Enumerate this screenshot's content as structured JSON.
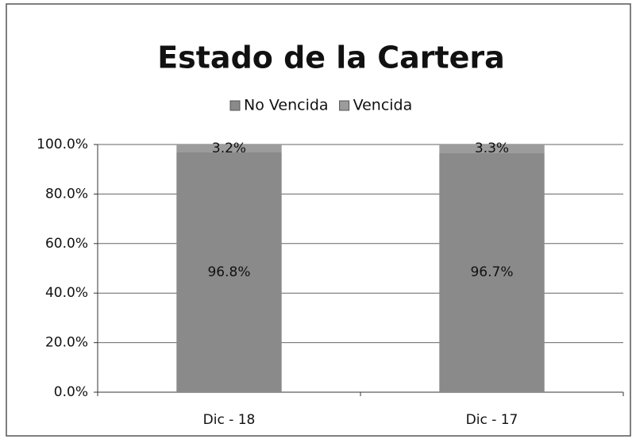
{
  "chart_data": {
    "type": "stacked_bar",
    "title": "Estado de la Cartera",
    "categories": [
      "Dic - 18",
      "Dic - 17"
    ],
    "series": [
      {
        "name": "No Vencida",
        "color": "#8a8a8a",
        "values": [
          96.8,
          96.7
        ],
        "value_labels": [
          "96.8%",
          "96.7%"
        ]
      },
      {
        "name": "Vencida",
        "color": "#9c9c9c",
        "values": [
          3.2,
          3.3
        ],
        "value_labels": [
          "3.2%",
          "3.3%"
        ]
      }
    ],
    "ylim": [
      0,
      100
    ],
    "yticks": [
      {
        "value": 0,
        "label": "0.0%"
      },
      {
        "value": 20,
        "label": "20.0%"
      },
      {
        "value": 40,
        "label": "40.0%"
      },
      {
        "value": 60,
        "label": "60.0%"
      },
      {
        "value": 80,
        "label": "80.0%"
      },
      {
        "value": 100,
        "label": "100.0%"
      }
    ],
    "grid": true,
    "legend": "top"
  }
}
